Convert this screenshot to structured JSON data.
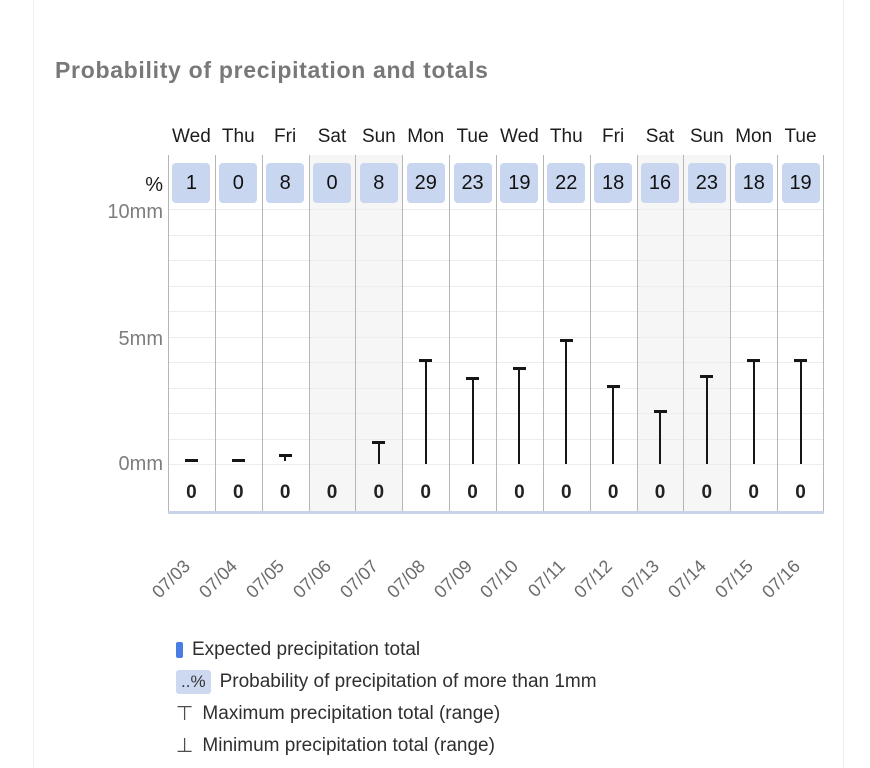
{
  "page": {
    "title": "Probability of precipitation and totals"
  },
  "axis": {
    "percent_label": "%",
    "y_ticks": [
      "10mm",
      "5mm",
      "0mm"
    ]
  },
  "chart_data": {
    "type": "bar",
    "title": "Probability of precipitation and totals",
    "ylabel": "mm",
    "ylim": [
      0,
      10
    ],
    "grid": "horizontal lines every 1mm",
    "categories_day": [
      "Wed",
      "Thu",
      "Fri",
      "Sat",
      "Sun",
      "Mon",
      "Tue",
      "Wed",
      "Thu",
      "Fri",
      "Sat",
      "Sun",
      "Mon",
      "Tue"
    ],
    "categories_date": [
      "07/03",
      "07/04",
      "07/05",
      "07/06",
      "07/07",
      "07/08",
      "07/09",
      "07/10",
      "07/11",
      "07/12",
      "07/13",
      "07/14",
      "07/15",
      "07/16"
    ],
    "series": [
      {
        "name": "Probability of precipitation of more than 1mm (%)",
        "values": [
          1,
          0,
          8,
          0,
          8,
          29,
          23,
          19,
          22,
          18,
          16,
          23,
          18,
          19
        ]
      },
      {
        "name": "Expected precipitation total (mm)",
        "values": [
          0,
          0,
          0,
          0,
          0,
          0,
          0,
          0,
          0,
          0,
          0,
          0,
          0,
          0
        ]
      },
      {
        "name": "Maximum precipitation total (mm)",
        "values": [
          0.2,
          0.2,
          0.4,
          0,
          0.9,
          4.1,
          3.4,
          3.8,
          4.9,
          3.1,
          2.1,
          3.5,
          4.1,
          4.1
        ]
      },
      {
        "name": "Minimum precipitation total (mm)",
        "values": [
          0.1,
          0.1,
          0.1,
          0,
          0,
          0,
          0,
          0,
          0,
          0,
          0,
          0,
          0,
          0
        ]
      }
    ],
    "weekend_shaded_indices": [
      3,
      4,
      10,
      11
    ],
    "legend_position": "bottom-left"
  },
  "legend": {
    "items": [
      {
        "marker": "expected-bar-icon",
        "marker_text": "",
        "label": "Expected precipitation total"
      },
      {
        "marker": "percent-box-icon",
        "marker_text": "..%",
        "label": "Probability of precipitation of more than 1mm"
      },
      {
        "marker": "max-range-icon",
        "marker_text": "⊤",
        "label": "Maximum precipitation total (range)"
      },
      {
        "marker": "min-range-icon",
        "marker_text": "⊥",
        "label": "Minimum precipitation total (range)"
      }
    ]
  },
  "colors": {
    "accent_blue": "#4a7de4",
    "pop_box_bg": "#c9d6ef",
    "weekend_bg": "#f6f6f6",
    "grid_line": "#ededed",
    "column_separator": "#b6b6b6",
    "bottom_border": "#c8d3ea",
    "title_text": "#787878",
    "axis_text": "#7d7d7d",
    "date_text": "#6b6b6b",
    "bar_color": "#161616"
  }
}
